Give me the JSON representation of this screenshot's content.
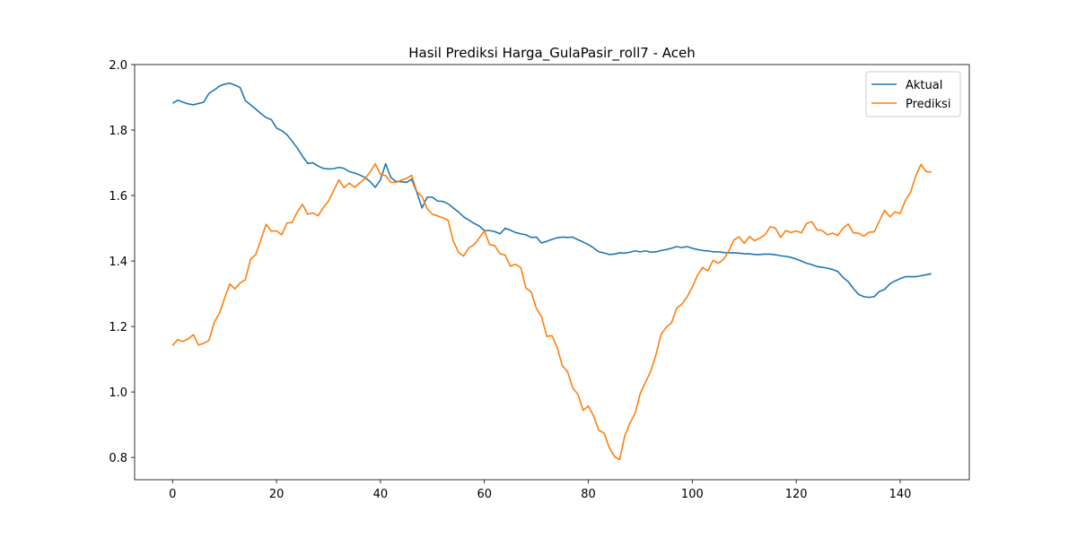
{
  "chart_data": {
    "type": "line",
    "title": "Hasil Prediksi Harga_GulaPasir_roll7 - Aceh",
    "x": [
      0,
      1,
      2,
      3,
      4,
      5,
      6,
      7,
      8,
      9,
      10,
      11,
      12,
      13,
      14,
      15,
      16,
      17,
      18,
      19,
      20,
      21,
      22,
      23,
      24,
      25,
      26,
      27,
      28,
      29,
      30,
      31,
      32,
      33,
      34,
      35,
      36,
      37,
      38,
      39,
      40,
      41,
      42,
      43,
      44,
      45,
      46,
      47,
      48,
      49,
      50,
      51,
      52,
      53,
      54,
      55,
      56,
      57,
      58,
      59,
      60,
      61,
      62,
      63,
      64,
      65,
      66,
      67,
      68,
      69,
      70,
      71,
      72,
      73,
      74,
      75,
      76,
      77,
      78,
      79,
      80,
      81,
      82,
      83,
      84,
      85,
      86,
      87,
      88,
      89,
      90,
      91,
      92,
      93,
      94,
      95,
      96,
      97,
      98,
      99,
      100,
      101,
      102,
      103,
      104,
      105,
      106,
      107,
      108,
      109,
      110,
      111,
      112,
      113,
      114,
      115,
      116,
      117,
      118,
      119,
      120,
      121,
      122,
      123,
      124,
      125,
      126,
      127,
      128,
      129,
      130,
      131,
      132,
      133,
      134,
      135,
      136,
      137,
      138,
      139,
      140,
      141,
      142,
      143,
      144,
      145,
      146
    ],
    "series": [
      {
        "name": "Aktual",
        "color": "#1f77b4",
        "values": [
          1.882,
          1.891,
          1.885,
          1.88,
          1.877,
          1.881,
          1.885,
          1.912,
          1.922,
          1.934,
          1.94,
          1.943,
          1.937,
          1.93,
          1.89,
          1.877,
          1.864,
          1.85,
          1.838,
          1.832,
          1.806,
          1.798,
          1.786,
          1.766,
          1.745,
          1.72,
          1.698,
          1.7,
          1.69,
          1.683,
          1.681,
          1.682,
          1.686,
          1.683,
          1.673,
          1.669,
          1.663,
          1.655,
          1.643,
          1.625,
          1.648,
          1.697,
          1.655,
          1.643,
          1.642,
          1.64,
          1.65,
          1.61,
          1.562,
          1.595,
          1.595,
          1.583,
          1.582,
          1.575,
          1.562,
          1.55,
          1.535,
          1.525,
          1.515,
          1.507,
          1.493,
          1.493,
          1.49,
          1.483,
          1.5,
          1.494,
          1.487,
          1.483,
          1.48,
          1.472,
          1.473,
          1.455,
          1.46,
          1.466,
          1.471,
          1.473,
          1.472,
          1.473,
          1.465,
          1.458,
          1.45,
          1.44,
          1.428,
          1.425,
          1.42,
          1.421,
          1.425,
          1.424,
          1.427,
          1.431,
          1.428,
          1.431,
          1.427,
          1.428,
          1.432,
          1.435,
          1.439,
          1.444,
          1.441,
          1.444,
          1.439,
          1.435,
          1.432,
          1.431,
          1.428,
          1.428,
          1.426,
          1.425,
          1.425,
          1.424,
          1.422,
          1.422,
          1.42,
          1.42,
          1.421,
          1.421,
          1.419,
          1.416,
          1.414,
          1.411,
          1.406,
          1.4,
          1.393,
          1.389,
          1.383,
          1.381,
          1.378,
          1.374,
          1.368,
          1.35,
          1.337,
          1.316,
          1.298,
          1.291,
          1.289,
          1.291,
          1.307,
          1.313,
          1.33,
          1.339,
          1.346,
          1.352,
          1.352,
          1.352,
          1.355,
          1.358,
          1.361
        ]
      },
      {
        "name": "Prediksi",
        "color": "#ff7f0e",
        "values": [
          1.142,
          1.16,
          1.154,
          1.162,
          1.175,
          1.143,
          1.149,
          1.157,
          1.212,
          1.24,
          1.286,
          1.33,
          1.315,
          1.333,
          1.343,
          1.405,
          1.42,
          1.465,
          1.512,
          1.491,
          1.492,
          1.48,
          1.516,
          1.518,
          1.55,
          1.573,
          1.543,
          1.547,
          1.538,
          1.563,
          1.583,
          1.615,
          1.648,
          1.624,
          1.638,
          1.625,
          1.638,
          1.651,
          1.672,
          1.697,
          1.664,
          1.661,
          1.64,
          1.64,
          1.647,
          1.652,
          1.662,
          1.612,
          1.597,
          1.56,
          1.543,
          1.538,
          1.532,
          1.525,
          1.462,
          1.427,
          1.415,
          1.44,
          1.45,
          1.47,
          1.492,
          1.45,
          1.447,
          1.422,
          1.418,
          1.384,
          1.39,
          1.38,
          1.317,
          1.306,
          1.255,
          1.23,
          1.17,
          1.172,
          1.136,
          1.08,
          1.062,
          1.013,
          0.992,
          0.944,
          0.957,
          0.927,
          0.883,
          0.875,
          0.831,
          0.803,
          0.793,
          0.865,
          0.905,
          0.935,
          0.996,
          1.03,
          1.063,
          1.113,
          1.176,
          1.198,
          1.211,
          1.256,
          1.268,
          1.29,
          1.32,
          1.357,
          1.38,
          1.37,
          1.402,
          1.393,
          1.405,
          1.43,
          1.464,
          1.474,
          1.454,
          1.475,
          1.462,
          1.47,
          1.48,
          1.505,
          1.5,
          1.472,
          1.493,
          1.487,
          1.492,
          1.486,
          1.515,
          1.52,
          1.495,
          1.493,
          1.48,
          1.485,
          1.478,
          1.5,
          1.513,
          1.486,
          1.485,
          1.476,
          1.488,
          1.489,
          1.522,
          1.555,
          1.535,
          1.55,
          1.545,
          1.585,
          1.61,
          1.66,
          1.695,
          1.673,
          1.672
        ]
      }
    ],
    "xlim": [
      -7.3,
      153.3
    ],
    "xticks": [
      0,
      20,
      40,
      60,
      80,
      100,
      120,
      140
    ],
    "ylim": [
      0.732,
      2.0
    ],
    "yticks": [
      0.8,
      {
        "value": 1.0,
        "label": "1.0"
      },
      1.2,
      1.4,
      1.6,
      1.8,
      {
        "value": 2.0,
        "label": "2.0"
      }
    ],
    "grid": false,
    "legend": "upper-right"
  }
}
